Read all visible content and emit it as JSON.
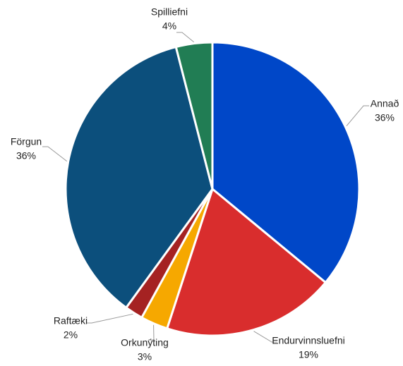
{
  "chart_data": {
    "type": "pie",
    "categories": [
      "Annað",
      "Endurvinnsluefni",
      "Orkunýting",
      "Raftæki",
      "Förgun",
      "Spilliefni"
    ],
    "values": [
      36,
      19,
      3,
      2,
      36,
      4
    ],
    "value_labels": [
      "36%",
      "19%",
      "3%",
      "2%",
      "36%",
      "4%"
    ],
    "colors": [
      "#0047c8",
      "#d92d2d",
      "#f6a800",
      "#a52222",
      "#0c4f7c",
      "#217d54"
    ]
  }
}
